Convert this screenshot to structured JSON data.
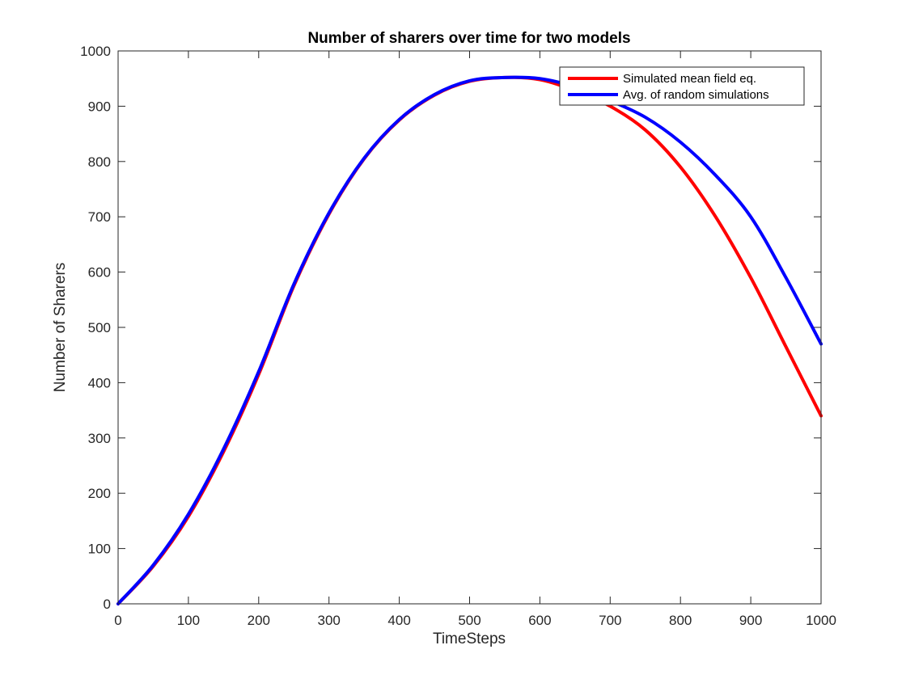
{
  "chart_data": {
    "type": "line",
    "title": "Number of sharers over time for two models",
    "xlabel": "TimeSteps",
    "ylabel": "Number of Sharers",
    "xlim": [
      0,
      1000
    ],
    "ylim": [
      0,
      1000
    ],
    "xticks": [
      0,
      100,
      200,
      300,
      400,
      500,
      600,
      700,
      800,
      900,
      1000
    ],
    "yticks": [
      0,
      100,
      200,
      300,
      400,
      500,
      600,
      700,
      800,
      900,
      1000
    ],
    "grid": false,
    "legend_position": "top-right",
    "x": [
      0,
      50,
      100,
      150,
      200,
      250,
      300,
      350,
      400,
      450,
      500,
      550,
      600,
      650,
      700,
      750,
      800,
      850,
      900,
      950,
      1000
    ],
    "series": [
      {
        "name": "Simulated mean field eq.",
        "color": "#ff0000",
        "values": [
          0,
          68,
          158,
          275,
          415,
          575,
          705,
          805,
          875,
          920,
          945,
          952,
          948,
          928,
          900,
          857,
          790,
          700,
          590,
          465,
          340
        ]
      },
      {
        "name": "Avg. of random simulations",
        "color": "#0000ff",
        "values": [
          0,
          70,
          162,
          280,
          420,
          578,
          707,
          806,
          876,
          921,
          946,
          952,
          950,
          935,
          910,
          880,
          835,
          775,
          700,
          590,
          470
        ]
      }
    ]
  }
}
